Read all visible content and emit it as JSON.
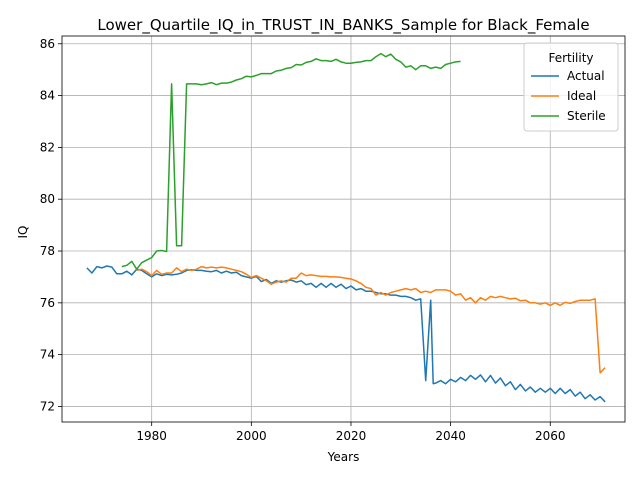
{
  "chart_data": {
    "type": "line",
    "title": "Lower_Quartile_IQ_in_TRUST_IN_BANKS_Sample for Black_Female",
    "xlabel": "Years",
    "ylabel": "IQ",
    "xlim": [
      1962,
      2075
    ],
    "ylim": [
      71.4,
      86.3
    ],
    "xticks": [
      1980,
      2000,
      2020,
      2040,
      2060
    ],
    "yticks": [
      72,
      74,
      76,
      78,
      80,
      82,
      84,
      86
    ],
    "grid": true,
    "legend": {
      "title": "Fertility",
      "position": "top-right"
    },
    "series": [
      {
        "name": "Actual",
        "color": "#1f77b4",
        "points": [
          [
            1967,
            77.35
          ],
          [
            1968,
            77.15
          ],
          [
            1969,
            77.4
          ],
          [
            1970,
            77.35
          ],
          [
            1971,
            77.42
          ],
          [
            1972,
            77.38
          ],
          [
            1973,
            77.12
          ],
          [
            1974,
            77.12
          ],
          [
            1975,
            77.22
          ],
          [
            1976,
            77.08
          ],
          [
            1977,
            77.3
          ],
          [
            1978,
            77.25
          ],
          [
            1979,
            77.12
          ],
          [
            1980,
            77.0
          ],
          [
            1981,
            77.12
          ],
          [
            1982,
            77.05
          ],
          [
            1983,
            77.1
          ],
          [
            1984,
            77.08
          ],
          [
            1985,
            77.1
          ],
          [
            1986,
            77.15
          ],
          [
            1987,
            77.25
          ],
          [
            1988,
            77.28
          ],
          [
            1989,
            77.25
          ],
          [
            1990,
            77.25
          ],
          [
            1991,
            77.22
          ],
          [
            1992,
            77.2
          ],
          [
            1993,
            77.25
          ],
          [
            1994,
            77.15
          ],
          [
            1995,
            77.22
          ],
          [
            1996,
            77.15
          ],
          [
            1997,
            77.18
          ],
          [
            1998,
            77.05
          ],
          [
            1999,
            77.0
          ],
          [
            2000,
            76.95
          ],
          [
            2001,
            77.02
          ],
          [
            2002,
            76.82
          ],
          [
            2003,
            76.9
          ],
          [
            2004,
            76.75
          ],
          [
            2005,
            76.85
          ],
          [
            2006,
            76.8
          ],
          [
            2007,
            76.85
          ],
          [
            2008,
            76.88
          ],
          [
            2009,
            76.8
          ],
          [
            2010,
            76.85
          ],
          [
            2011,
            76.7
          ],
          [
            2012,
            76.75
          ],
          [
            2013,
            76.6
          ],
          [
            2014,
            76.75
          ],
          [
            2015,
            76.6
          ],
          [
            2016,
            76.75
          ],
          [
            2017,
            76.6
          ],
          [
            2018,
            76.72
          ],
          [
            2019,
            76.55
          ],
          [
            2020,
            76.65
          ],
          [
            2021,
            76.5
          ],
          [
            2022,
            76.55
          ],
          [
            2023,
            76.45
          ],
          [
            2024,
            76.45
          ],
          [
            2025,
            76.4
          ],
          [
            2026,
            76.35
          ],
          [
            2027,
            76.35
          ],
          [
            2028,
            76.3
          ],
          [
            2029,
            76.3
          ],
          [
            2030,
            76.25
          ],
          [
            2031,
            76.25
          ],
          [
            2032,
            76.2
          ],
          [
            2033,
            76.1
          ],
          [
            2034,
            76.15
          ],
          [
            2035,
            73.0
          ],
          [
            2036,
            76.1
          ],
          [
            2036.5,
            72.88
          ],
          [
            2037,
            72.9
          ],
          [
            2038,
            73.0
          ],
          [
            2039,
            72.88
          ],
          [
            2040,
            73.05
          ],
          [
            2041,
            72.95
          ],
          [
            2042,
            73.12
          ],
          [
            2043,
            73.0
          ],
          [
            2044,
            73.2
          ],
          [
            2045,
            73.05
          ],
          [
            2046,
            73.22
          ],
          [
            2047,
            72.95
          ],
          [
            2048,
            73.2
          ],
          [
            2049,
            72.9
          ],
          [
            2050,
            73.1
          ],
          [
            2051,
            72.8
          ],
          [
            2052,
            72.95
          ],
          [
            2053,
            72.65
          ],
          [
            2054,
            72.85
          ],
          [
            2055,
            72.6
          ],
          [
            2056,
            72.75
          ],
          [
            2057,
            72.55
          ],
          [
            2058,
            72.7
          ],
          [
            2059,
            72.55
          ],
          [
            2060,
            72.7
          ],
          [
            2061,
            72.5
          ],
          [
            2062,
            72.7
          ],
          [
            2063,
            72.5
          ],
          [
            2064,
            72.65
          ],
          [
            2065,
            72.4
          ],
          [
            2066,
            72.55
          ],
          [
            2067,
            72.3
          ],
          [
            2068,
            72.45
          ],
          [
            2069,
            72.25
          ],
          [
            2070,
            72.38
          ],
          [
            2071,
            72.18
          ]
        ]
      },
      {
        "name": "Ideal",
        "color": "#ff7f0e",
        "points": [
          [
            1977,
            77.25
          ],
          [
            1978,
            77.3
          ],
          [
            1979,
            77.2
          ],
          [
            1980,
            77.05
          ],
          [
            1981,
            77.25
          ],
          [
            1982,
            77.1
          ],
          [
            1983,
            77.15
          ],
          [
            1984,
            77.15
          ],
          [
            1985,
            77.35
          ],
          [
            1986,
            77.2
          ],
          [
            1987,
            77.3
          ],
          [
            1988,
            77.25
          ],
          [
            1989,
            77.3
          ],
          [
            1990,
            77.4
          ],
          [
            1991,
            77.35
          ],
          [
            1992,
            77.38
          ],
          [
            1993,
            77.35
          ],
          [
            1994,
            77.38
          ],
          [
            1995,
            77.35
          ],
          [
            1996,
            77.3
          ],
          [
            1997,
            77.25
          ],
          [
            1998,
            77.2
          ],
          [
            1999,
            77.1
          ],
          [
            2000,
            76.98
          ],
          [
            2001,
            77.05
          ],
          [
            2002,
            76.95
          ],
          [
            2003,
            76.85
          ],
          [
            2004,
            76.72
          ],
          [
            2005,
            76.8
          ],
          [
            2006,
            76.85
          ],
          [
            2007,
            76.8
          ],
          [
            2008,
            76.95
          ],
          [
            2009,
            76.95
          ],
          [
            2010,
            77.15
          ],
          [
            2011,
            77.05
          ],
          [
            2012,
            77.08
          ],
          [
            2013,
            77.05
          ],
          [
            2014,
            77.02
          ],
          [
            2015,
            77.02
          ],
          [
            2016,
            77.0
          ],
          [
            2017,
            77.0
          ],
          [
            2018,
            76.98
          ],
          [
            2019,
            76.95
          ],
          [
            2020,
            76.92
          ],
          [
            2021,
            76.85
          ],
          [
            2022,
            76.75
          ],
          [
            2023,
            76.6
          ],
          [
            2024,
            76.55
          ],
          [
            2025,
            76.3
          ],
          [
            2026,
            76.4
          ],
          [
            2027,
            76.3
          ],
          [
            2028,
            76.4
          ],
          [
            2029,
            76.45
          ],
          [
            2030,
            76.5
          ],
          [
            2031,
            76.55
          ],
          [
            2032,
            76.5
          ],
          [
            2033,
            76.55
          ],
          [
            2034,
            76.4
          ],
          [
            2035,
            76.45
          ],
          [
            2036,
            76.4
          ],
          [
            2037,
            76.5
          ],
          [
            2038,
            76.5
          ],
          [
            2039,
            76.5
          ],
          [
            2040,
            76.45
          ],
          [
            2041,
            76.3
          ],
          [
            2042,
            76.35
          ],
          [
            2043,
            76.1
          ],
          [
            2044,
            76.2
          ],
          [
            2045,
            76.0
          ],
          [
            2046,
            76.2
          ],
          [
            2047,
            76.1
          ],
          [
            2048,
            76.25
          ],
          [
            2049,
            76.2
          ],
          [
            2050,
            76.25
          ],
          [
            2051,
            76.2
          ],
          [
            2052,
            76.15
          ],
          [
            2053,
            76.18
          ],
          [
            2054,
            76.08
          ],
          [
            2055,
            76.1
          ],
          [
            2056,
            76.0
          ],
          [
            2057,
            76.0
          ],
          [
            2058,
            75.95
          ],
          [
            2059,
            76.0
          ],
          [
            2060,
            75.9
          ],
          [
            2061,
            76.0
          ],
          [
            2062,
            75.9
          ],
          [
            2063,
            76.02
          ],
          [
            2064,
            75.98
          ],
          [
            2065,
            76.05
          ],
          [
            2066,
            76.1
          ],
          [
            2067,
            76.1
          ],
          [
            2068,
            76.1
          ],
          [
            2069,
            76.15
          ],
          [
            2070,
            73.3
          ],
          [
            2071,
            73.5
          ]
        ]
      },
      {
        "name": "Sterile",
        "color": "#2ca02c",
        "points": [
          [
            1974,
            77.4
          ],
          [
            1975,
            77.45
          ],
          [
            1976,
            77.6
          ],
          [
            1977,
            77.3
          ],
          [
            1978,
            77.55
          ],
          [
            1979,
            77.65
          ],
          [
            1980,
            77.75
          ],
          [
            1981,
            78.0
          ],
          [
            1982,
            78.02
          ],
          [
            1983,
            77.98
          ],
          [
            1984,
            84.45
          ],
          [
            1985,
            78.2
          ],
          [
            1986,
            78.2
          ],
          [
            1987,
            84.45
          ],
          [
            1988,
            84.45
          ],
          [
            1989,
            84.45
          ],
          [
            1990,
            84.42
          ],
          [
            1991,
            84.45
          ],
          [
            1992,
            84.5
          ],
          [
            1993,
            84.42
          ],
          [
            1994,
            84.48
          ],
          [
            1995,
            84.48
          ],
          [
            1996,
            84.52
          ],
          [
            1997,
            84.6
          ],
          [
            1998,
            84.65
          ],
          [
            1999,
            84.75
          ],
          [
            2000,
            84.72
          ],
          [
            2001,
            84.78
          ],
          [
            2002,
            84.85
          ],
          [
            2003,
            84.85
          ],
          [
            2004,
            84.85
          ],
          [
            2005,
            84.95
          ],
          [
            2006,
            84.98
          ],
          [
            2007,
            85.05
          ],
          [
            2008,
            85.08
          ],
          [
            2009,
            85.2
          ],
          [
            2010,
            85.18
          ],
          [
            2011,
            85.28
          ],
          [
            2012,
            85.32
          ],
          [
            2013,
            85.42
          ],
          [
            2014,
            85.35
          ],
          [
            2015,
            85.35
          ],
          [
            2016,
            85.32
          ],
          [
            2017,
            85.4
          ],
          [
            2018,
            85.3
          ],
          [
            2019,
            85.25
          ],
          [
            2020,
            85.25
          ],
          [
            2021,
            85.28
          ],
          [
            2022,
            85.3
          ],
          [
            2023,
            85.35
          ],
          [
            2024,
            85.35
          ],
          [
            2025,
            85.5
          ],
          [
            2026,
            85.62
          ],
          [
            2027,
            85.5
          ],
          [
            2028,
            85.6
          ],
          [
            2029,
            85.4
          ],
          [
            2030,
            85.3
          ],
          [
            2031,
            85.1
          ],
          [
            2032,
            85.15
          ],
          [
            2033,
            85.0
          ],
          [
            2034,
            85.15
          ],
          [
            2035,
            85.15
          ],
          [
            2036,
            85.05
          ],
          [
            2037,
            85.1
          ],
          [
            2038,
            85.05
          ],
          [
            2039,
            85.2
          ],
          [
            2040,
            85.25
          ],
          [
            2041,
            85.3
          ],
          [
            2042,
            85.32
          ]
        ]
      }
    ]
  }
}
